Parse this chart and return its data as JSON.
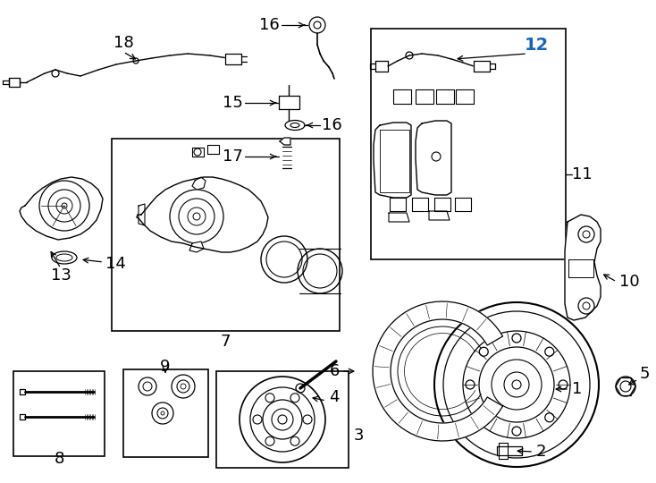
{
  "background": "#ffffff",
  "line_color": "#000000",
  "label_color_12": "#1565c0",
  "figsize": [
    7.34,
    5.4
  ],
  "dpi": 100,
  "boxes": {
    "7": [
      125,
      155,
      255,
      215
    ],
    "8": [
      15,
      415,
      102,
      95
    ],
    "9": [
      138,
      413,
      95,
      98
    ],
    "3": [
      242,
      415,
      148,
      108
    ],
    "11": [
      415,
      32,
      218,
      258
    ]
  }
}
